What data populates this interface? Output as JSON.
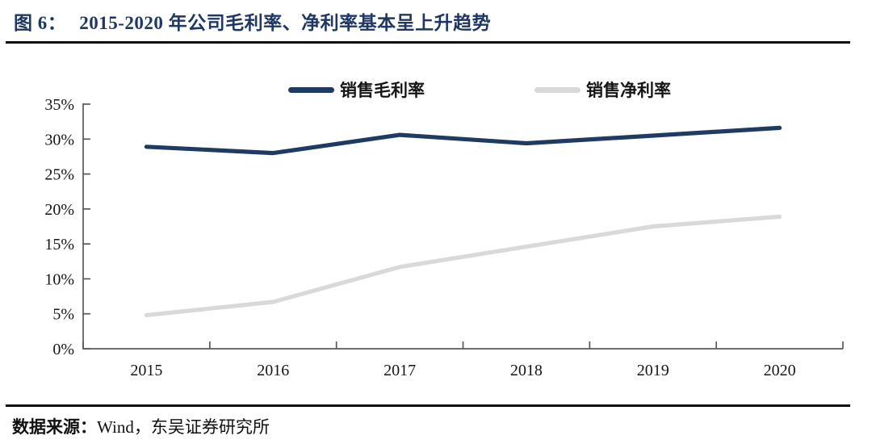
{
  "header": {
    "figure_label": "图 6：",
    "title": "2015-2020 年公司毛利率、净利率基本呈上升趋势"
  },
  "chart_data": {
    "type": "line",
    "title": "2015-2020 年公司毛利率、净利率基本呈上升趋势",
    "categories": [
      "2015",
      "2016",
      "2017",
      "2018",
      "2019",
      "2020"
    ],
    "series": [
      {
        "name": "销售毛利率",
        "values": [
          28.9,
          28.0,
          30.6,
          29.4,
          30.5,
          31.6
        ],
        "color": "#1F3B63"
      },
      {
        "name": "销售净利率",
        "values": [
          4.8,
          6.7,
          11.7,
          14.6,
          17.5,
          18.9
        ],
        "color": "#D9D9D9"
      }
    ],
    "ylim": [
      0,
      35
    ],
    "ytick_step": 5,
    "ytick_format": "{v}%",
    "grid": false,
    "legend_position": "top-center"
  },
  "footer": {
    "source_prefix": "数据来源：",
    "source_text": "Wind，东吴证券研究所"
  },
  "colors": {
    "title": "#1E3765",
    "separator": "#0D0D0D",
    "axis": "#595959",
    "tick_label": "#161616"
  }
}
